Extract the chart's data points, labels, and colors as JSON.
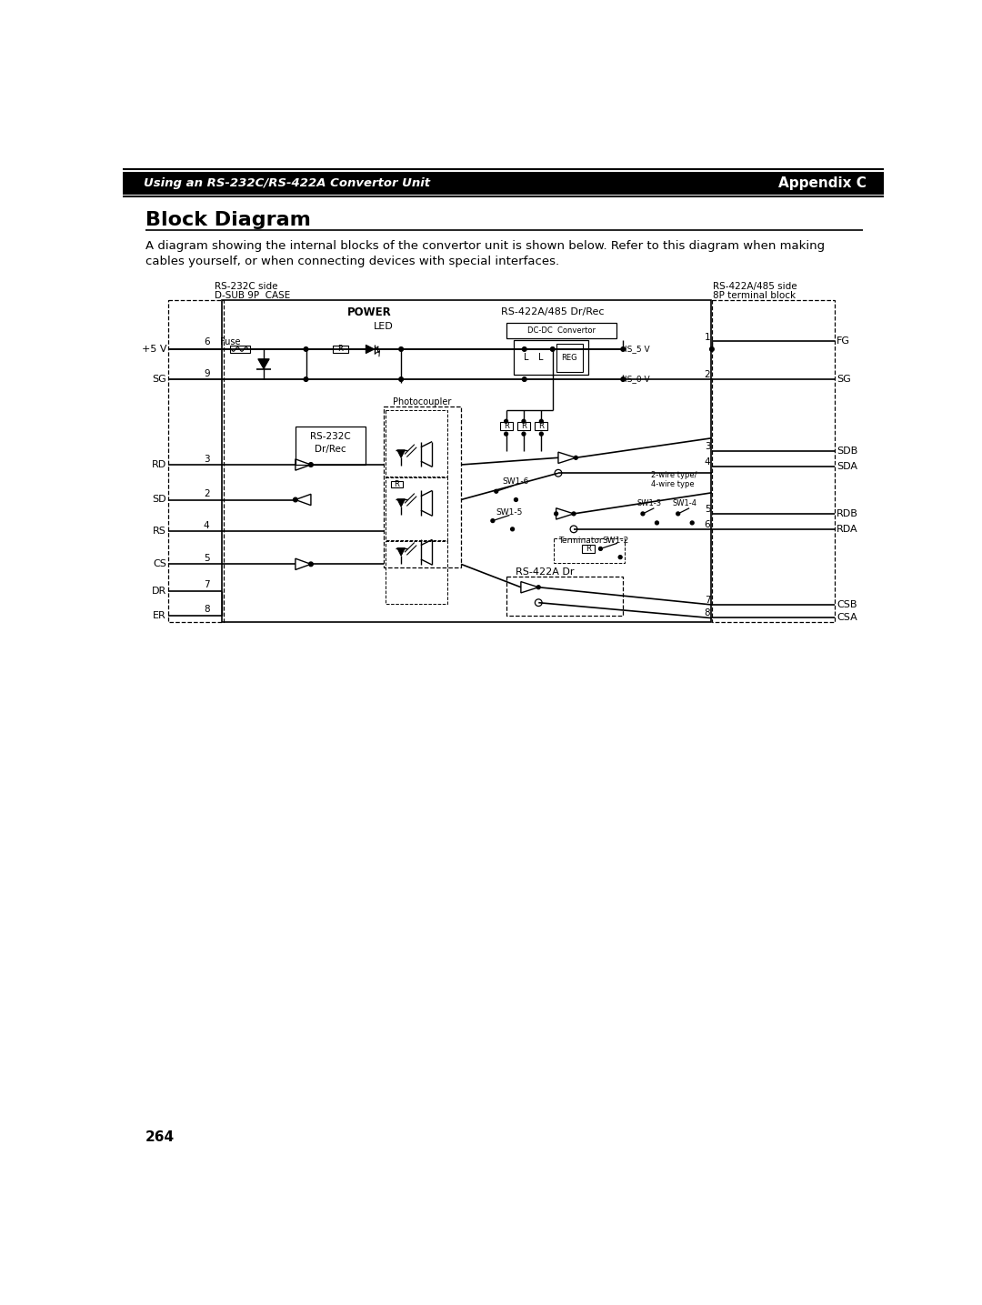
{
  "title": "Block Diagram",
  "header_left": "Using an RS-232C/RS-422A Convertor Unit",
  "header_right": "Appendix C",
  "desc1": "A diagram showing the internal blocks of the convertor unit is shown below. Refer to this diagram when making",
  "desc2": "cables yourself, or when connecting devices with special interfaces.",
  "page_number": "264",
  "bg_color": "#ffffff"
}
